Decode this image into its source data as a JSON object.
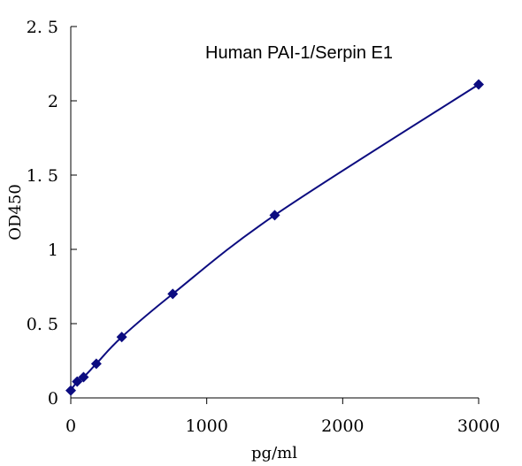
{
  "chart_data": {
    "type": "scatter",
    "title": "Human PAI-1/Serpin E1",
    "xlabel": "pg/ml",
    "ylabel": "OD450",
    "xlim": [
      0,
      3000
    ],
    "ylim": [
      0,
      2.5
    ],
    "x_ticks": [
      0,
      1000,
      2000,
      3000
    ],
    "x_tick_labels": [
      "0",
      "1000",
      "2000",
      "3000"
    ],
    "y_ticks": [
      0,
      0.5,
      1,
      1.5,
      2,
      2.5
    ],
    "y_tick_labels": [
      "0",
      "0. 5",
      "1",
      "1. 5",
      "2",
      "2. 5"
    ],
    "grid": false,
    "legend": "none",
    "series": [
      {
        "x": [
          0,
          47,
          94,
          188,
          375,
          750,
          1500,
          3000
        ],
        "y": [
          0.05,
          0.11,
          0.14,
          0.23,
          0.41,
          0.7,
          1.23,
          2.11
        ],
        "marker": "diamond",
        "color": "#0c0c80",
        "fit_line": "smooth"
      }
    ]
  }
}
